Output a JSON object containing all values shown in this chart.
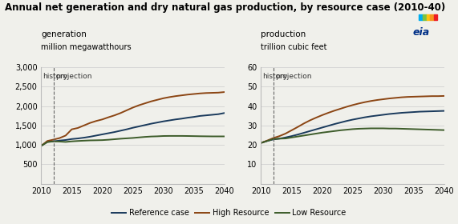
{
  "title": "Annual net generation and dry natural gas production, by resource case (2010-40)",
  "left_label1": "generation",
  "left_label2": "million megawatthours",
  "right_label1": "production",
  "right_label2": "trillion cubic feet",
  "history_label": "history",
  "projection_label": "projection",
  "dashed_line_x": 2012,
  "years": [
    2010,
    2011,
    2012,
    2013,
    2014,
    2015,
    2016,
    2017,
    2018,
    2019,
    2020,
    2021,
    2022,
    2023,
    2024,
    2025,
    2026,
    2027,
    2028,
    2029,
    2030,
    2031,
    2032,
    2033,
    2034,
    2035,
    2036,
    2037,
    2038,
    2039,
    2040
  ],
  "gen_reference": [
    975,
    1080,
    1090,
    1110,
    1125,
    1150,
    1165,
    1185,
    1210,
    1240,
    1270,
    1300,
    1330,
    1365,
    1400,
    1440,
    1475,
    1510,
    1545,
    1575,
    1605,
    1630,
    1655,
    1675,
    1700,
    1720,
    1745,
    1760,
    1775,
    1790,
    1820
  ],
  "gen_high": [
    975,
    1100,
    1135,
    1175,
    1240,
    1400,
    1435,
    1500,
    1565,
    1615,
    1655,
    1710,
    1760,
    1820,
    1890,
    1960,
    2020,
    2070,
    2120,
    2160,
    2200,
    2230,
    2255,
    2275,
    2295,
    2310,
    2325,
    2335,
    2340,
    2345,
    2360
  ],
  "gen_low": [
    975,
    1070,
    1090,
    1085,
    1075,
    1090,
    1100,
    1108,
    1115,
    1118,
    1122,
    1132,
    1145,
    1158,
    1168,
    1178,
    1192,
    1205,
    1215,
    1220,
    1228,
    1230,
    1230,
    1230,
    1228,
    1225,
    1222,
    1220,
    1218,
    1218,
    1218
  ],
  "prod_reference": [
    21.0,
    22.0,
    22.8,
    23.2,
    23.8,
    24.5,
    25.3,
    26.2,
    27.1,
    28.0,
    28.9,
    29.8,
    30.7,
    31.5,
    32.3,
    33.0,
    33.6,
    34.2,
    34.7,
    35.1,
    35.5,
    35.9,
    36.2,
    36.5,
    36.7,
    36.9,
    37.1,
    37.2,
    37.3,
    37.4,
    37.5
  ],
  "prod_high": [
    21.0,
    22.2,
    23.5,
    24.5,
    25.8,
    27.5,
    29.2,
    31.0,
    32.6,
    34.0,
    35.3,
    36.5,
    37.6,
    38.6,
    39.6,
    40.5,
    41.3,
    42.0,
    42.6,
    43.1,
    43.5,
    43.9,
    44.2,
    44.5,
    44.7,
    44.8,
    44.9,
    45.0,
    45.1,
    45.1,
    45.2
  ],
  "prod_low": [
    21.0,
    22.0,
    23.0,
    23.2,
    23.3,
    23.8,
    24.3,
    24.8,
    25.3,
    25.8,
    26.3,
    26.7,
    27.1,
    27.5,
    27.8,
    28.1,
    28.3,
    28.4,
    28.5,
    28.5,
    28.5,
    28.4,
    28.4,
    28.3,
    28.2,
    28.1,
    28.0,
    27.9,
    27.8,
    27.7,
    27.6
  ],
  "color_reference": "#1a3a5c",
  "color_high": "#8B4513",
  "color_low": "#3d5c2a",
  "left_ylim": [
    0,
    3000
  ],
  "left_yticks": [
    0,
    500,
    1000,
    1500,
    2000,
    2500,
    3000
  ],
  "right_ylim": [
    0,
    60
  ],
  "right_yticks": [
    0,
    10,
    20,
    30,
    40,
    50,
    60
  ],
  "xticks": [
    2010,
    2015,
    2020,
    2025,
    2030,
    2035,
    2040
  ],
  "legend_labels": [
    "Reference case",
    "High Resource",
    "Low Resource"
  ],
  "background_color": "#f0f0eb",
  "title_fontsize": 8.5,
  "label_fontsize": 7.5,
  "tick_fontsize": 7.0
}
